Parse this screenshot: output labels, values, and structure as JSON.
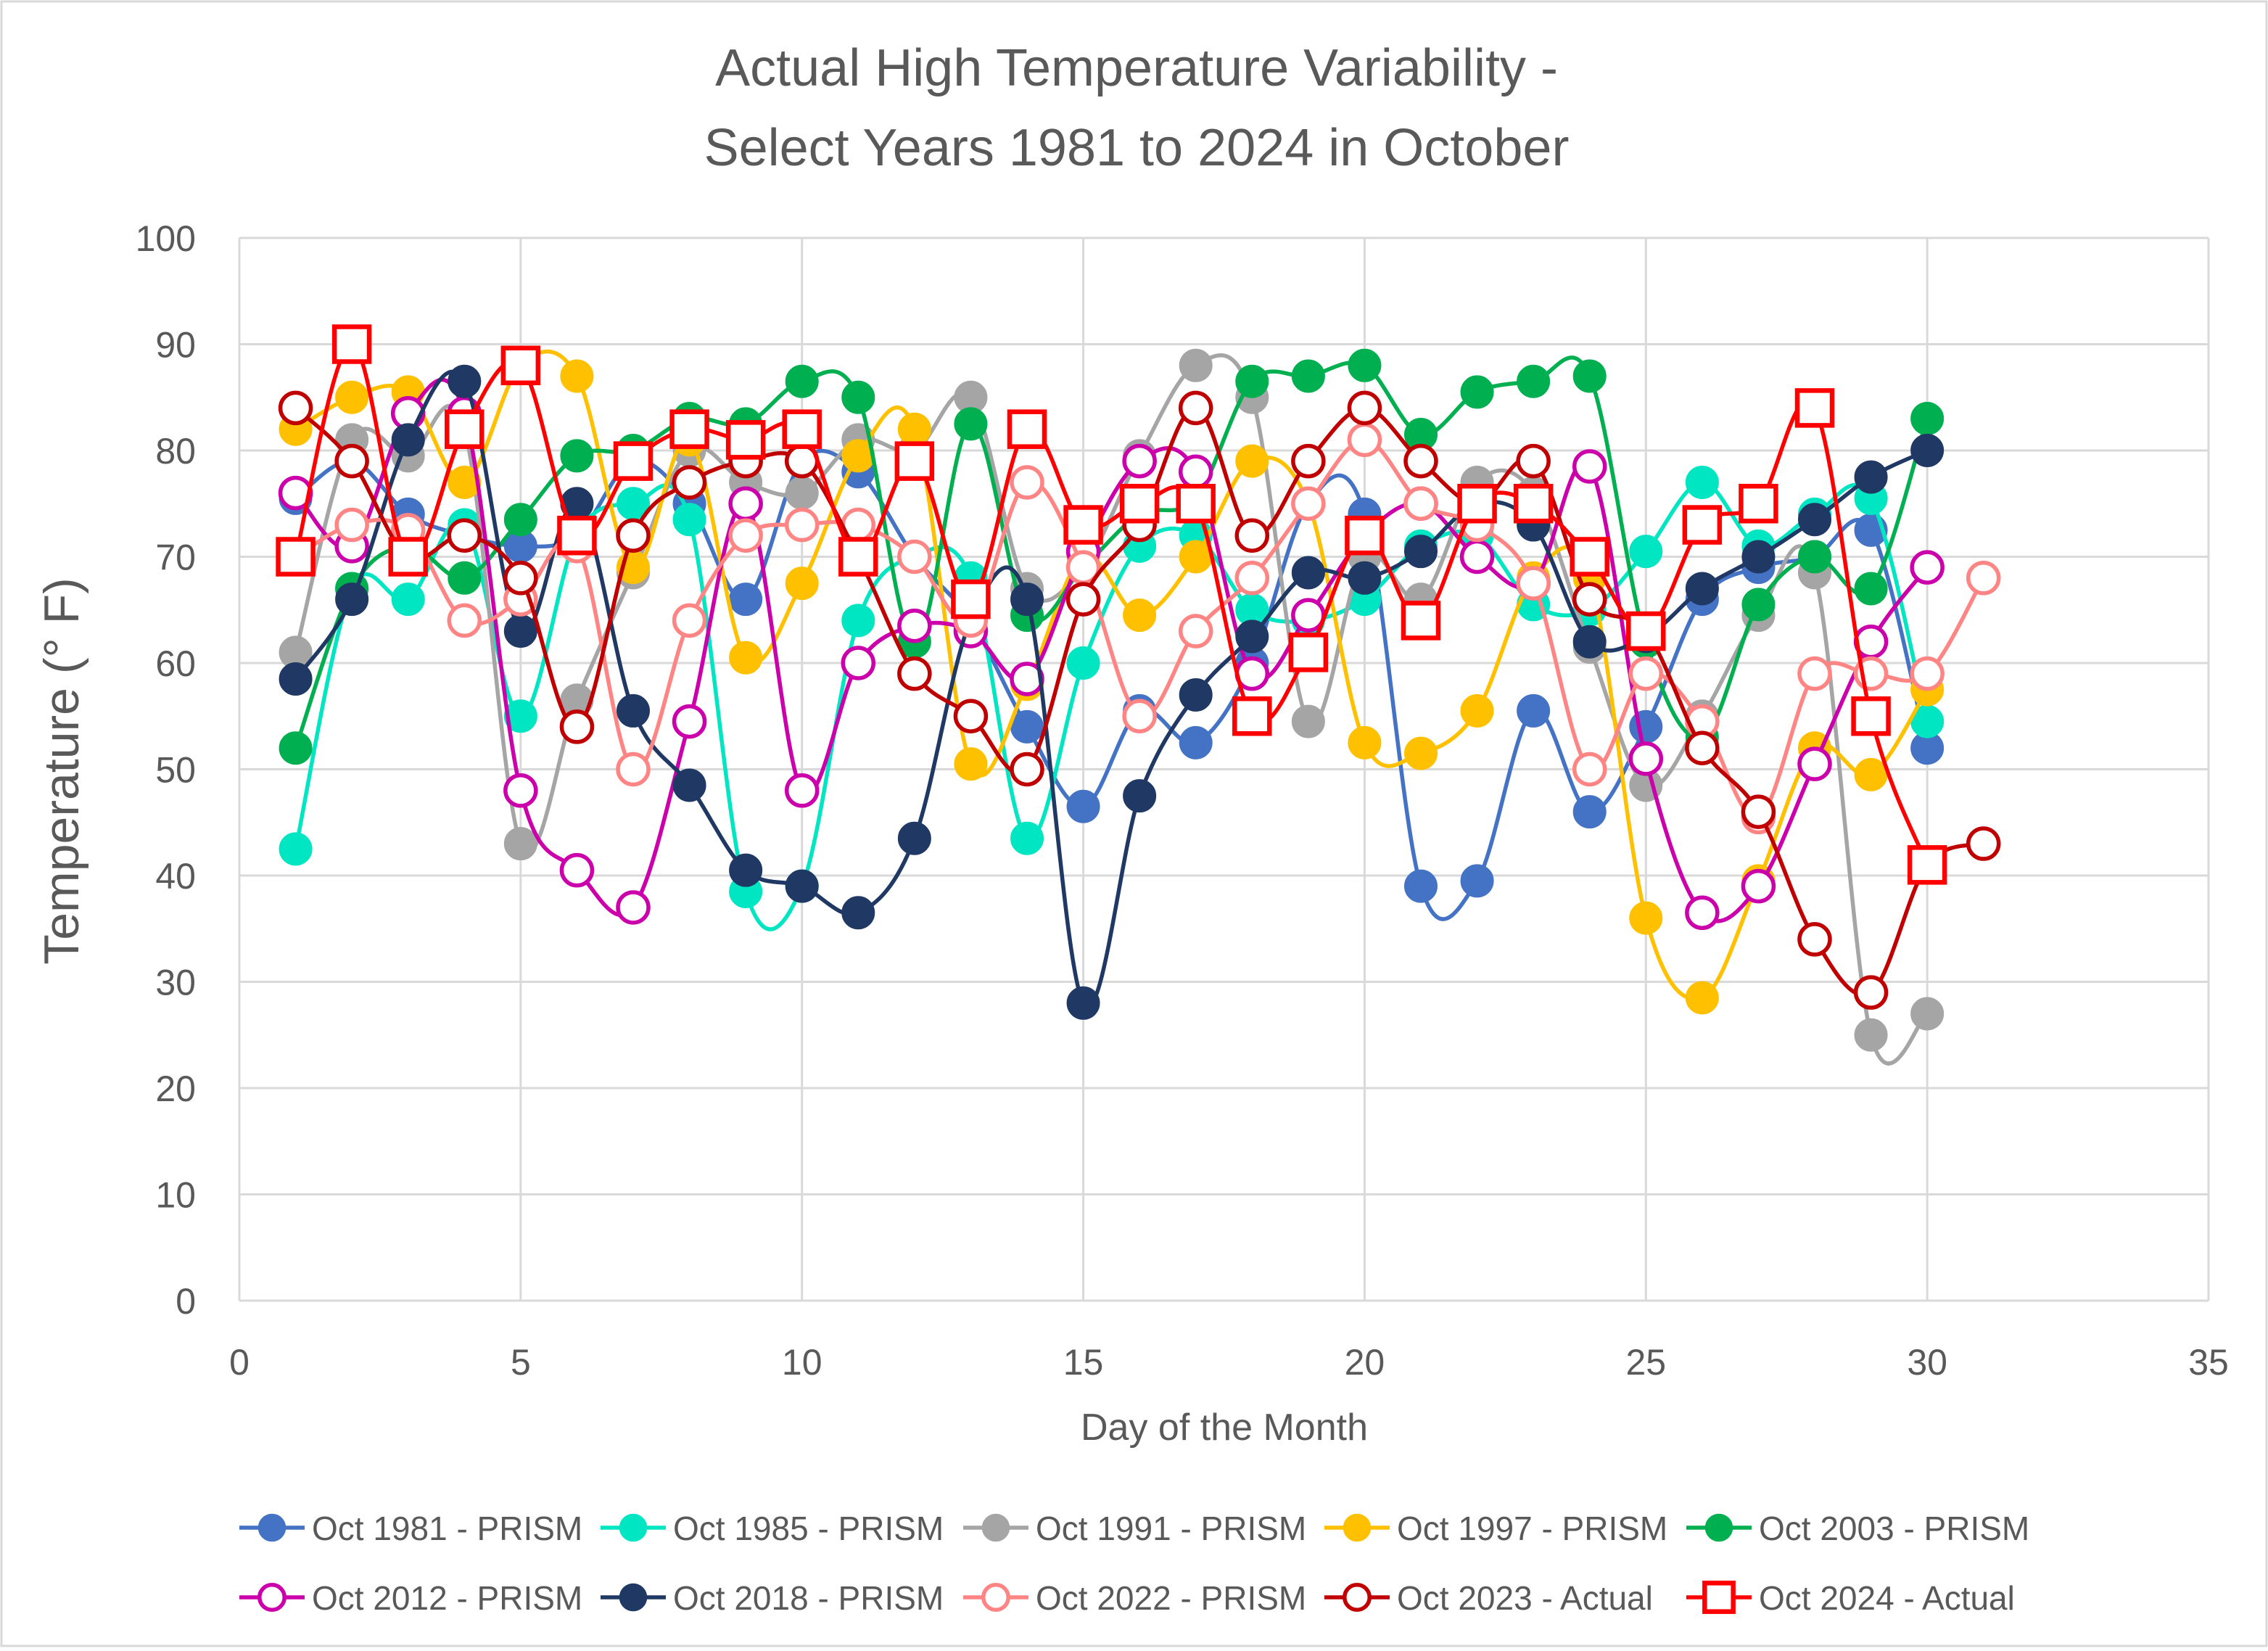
{
  "chart_data": {
    "type": "line",
    "title_lines": [
      "Actual High Temperature Variability -",
      "Select Years 1981 to 2024 in October"
    ],
    "xlabel": "Day of the Month",
    "ylabel": "Temperature (° F)",
    "xlim": [
      0,
      35
    ],
    "ylim": [
      0,
      100
    ],
    "xticks": [
      0,
      5,
      10,
      15,
      20,
      25,
      30,
      35
    ],
    "yticks": [
      0,
      10,
      20,
      30,
      40,
      50,
      60,
      70,
      80,
      90,
      100
    ],
    "grid": true,
    "legend_position": "bottom",
    "series": [
      {
        "name": "Oct 1981 - PRISM",
        "color": "#4472C4",
        "marker": "filled-circle",
        "values": [
          75.5,
          79,
          74,
          72,
          71,
          72,
          79,
          75,
          66,
          79,
          78,
          70,
          64,
          54,
          46.5,
          55.5,
          52.5,
          60,
          75,
          74,
          39,
          39.5,
          55.5,
          46,
          54,
          66,
          69,
          70,
          72.5,
          52
        ]
      },
      {
        "name": "Oct 1985 - PRISM",
        "color": "#00E6C3",
        "marker": "filled-circle",
        "values": [
          42.5,
          67,
          66,
          73,
          55,
          72,
          75,
          73.5,
          38.5,
          39,
          64,
          70,
          68,
          43.5,
          60,
          71,
          72,
          65,
          64,
          66,
          71,
          72,
          65.5,
          65,
          70.5,
          77,
          71,
          74,
          75.5,
          54.5
        ]
      },
      {
        "name": "Oct 1991 - PRISM",
        "color": "#A5A5A5",
        "marker": "filled-circle",
        "values": [
          61,
          81,
          79.5,
          82,
          43,
          56.5,
          68.5,
          80,
          77,
          76,
          81,
          80,
          85,
          67,
          69,
          79.5,
          88,
          85,
          54.5,
          70,
          66,
          77,
          76,
          61.5,
          48.5,
          55,
          64.5,
          68.5,
          25,
          27
        ]
      },
      {
        "name": "Oct 1997 - PRISM",
        "color": "#FFC000",
        "marker": "filled-circle",
        "values": [
          82,
          85,
          85.5,
          77,
          88,
          87,
          69,
          81,
          60.5,
          67.5,
          79.5,
          82,
          50.5,
          58,
          70,
          64.5,
          70,
          79,
          75,
          52.5,
          51.5,
          55.5,
          68,
          68,
          36,
          28.5,
          39.5,
          52,
          49.5,
          57.5
        ]
      },
      {
        "name": "Oct 2003 - PRISM",
        "color": "#00B050",
        "marker": "filled-circle",
        "values": [
          52,
          67,
          71,
          68,
          73.5,
          79.5,
          80,
          83,
          82.5,
          86.5,
          85,
          62,
          82.5,
          64.5,
          69,
          74,
          75.5,
          86.5,
          87,
          88,
          81.5,
          85.5,
          86.5,
          87,
          62,
          53,
          65.5,
          70,
          67,
          83
        ]
      },
      {
        "name": "Oct 2012 - PRISM",
        "color": "#CC00AA",
        "marker": "open-circle",
        "values": [
          76,
          71,
          83.5,
          83.5,
          48,
          40.5,
          37,
          54.5,
          75,
          48,
          60,
          63.5,
          63,
          58.5,
          70.5,
          79,
          78,
          59,
          64.5,
          72,
          75,
          70,
          67.5,
          78.5,
          51,
          36.5,
          39,
          50.5,
          62,
          69
        ]
      },
      {
        "name": "Oct 2018 - PRISM",
        "color": "#203864",
        "marker": "filled-circle",
        "values": [
          58.5,
          66,
          81,
          86.5,
          63,
          75,
          55.5,
          48.5,
          40.5,
          39,
          36.5,
          43.5,
          64,
          66,
          28,
          47.5,
          57,
          62.5,
          68.5,
          68,
          70.5,
          75,
          73,
          62,
          62.5,
          67,
          70,
          73.5,
          77.5,
          80
        ]
      },
      {
        "name": "Oct 2022 - PRISM",
        "color": "#FF8585",
        "marker": "open-circle",
        "values": [
          70,
          73,
          72.5,
          64,
          66,
          71,
          50,
          64,
          72,
          73,
          73,
          70,
          64,
          77,
          69,
          55,
          63,
          68,
          75,
          81,
          75,
          73,
          67.5,
          50,
          59,
          54.5,
          45.5,
          59,
          59,
          59,
          68
        ]
      },
      {
        "name": "Oct 2023 - Actual",
        "color": "#C00000",
        "marker": "open-circle",
        "values": [
          84,
          79,
          70,
          72,
          68,
          54,
          72,
          77,
          79,
          79,
          70,
          59,
          55,
          50,
          66,
          73,
          84,
          72,
          79,
          84,
          79,
          75,
          79,
          66,
          63,
          52,
          46,
          34,
          29,
          41,
          43
        ]
      },
      {
        "name": "Oct 2024 - Actual",
        "color": "#FF0000",
        "marker": "open-square",
        "values": [
          70,
          90,
          70,
          82,
          88,
          72,
          79,
          82,
          81,
          82,
          70,
          79,
          66,
          82,
          73,
          75,
          75,
          55,
          61,
          72,
          64,
          75,
          75,
          70,
          63,
          73,
          75,
          84,
          55,
          41
        ]
      }
    ]
  }
}
